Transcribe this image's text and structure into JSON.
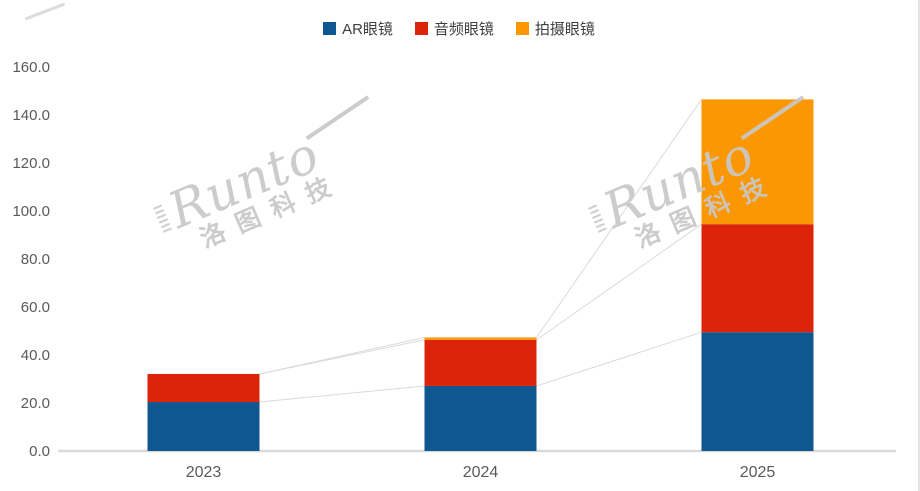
{
  "watermark": {
    "brand": "Runto",
    "company": "洛图科技"
  },
  "chart_data": {
    "type": "bar",
    "stacked": true,
    "title": "",
    "xlabel": "",
    "ylabel": "",
    "categories": [
      "2023",
      "2024",
      "2025"
    ],
    "series": [
      {
        "name": "AR眼镜",
        "color": "#10568F",
        "values": [
          20.4,
          27.1,
          49.5
        ]
      },
      {
        "name": "音频眼镜",
        "color": "#DB2409",
        "values": [
          11.7,
          19.2,
          45.0
        ]
      },
      {
        "name": "拍摄眼镜",
        "color": "#FB9703",
        "values": [
          0.0,
          1.0,
          52.0
        ]
      }
    ],
    "totals": [
      32.1,
      47.3,
      146.5
    ],
    "ylim": [
      0,
      160
    ],
    "ytick_step": 20,
    "ytick_labels": [
      "0.0",
      "20.0",
      "40.0",
      "60.0",
      "80.0",
      "100.0",
      "120.0",
      "140.0",
      "160.0"
    ],
    "grid": false,
    "legend_position": "top",
    "series_connector_lines": true,
    "colors": {
      "axis_text": "#595959",
      "legend_text": "#3f3f3f",
      "axis_line": "#d9d9d9",
      "connector_line": "#dadada"
    }
  }
}
